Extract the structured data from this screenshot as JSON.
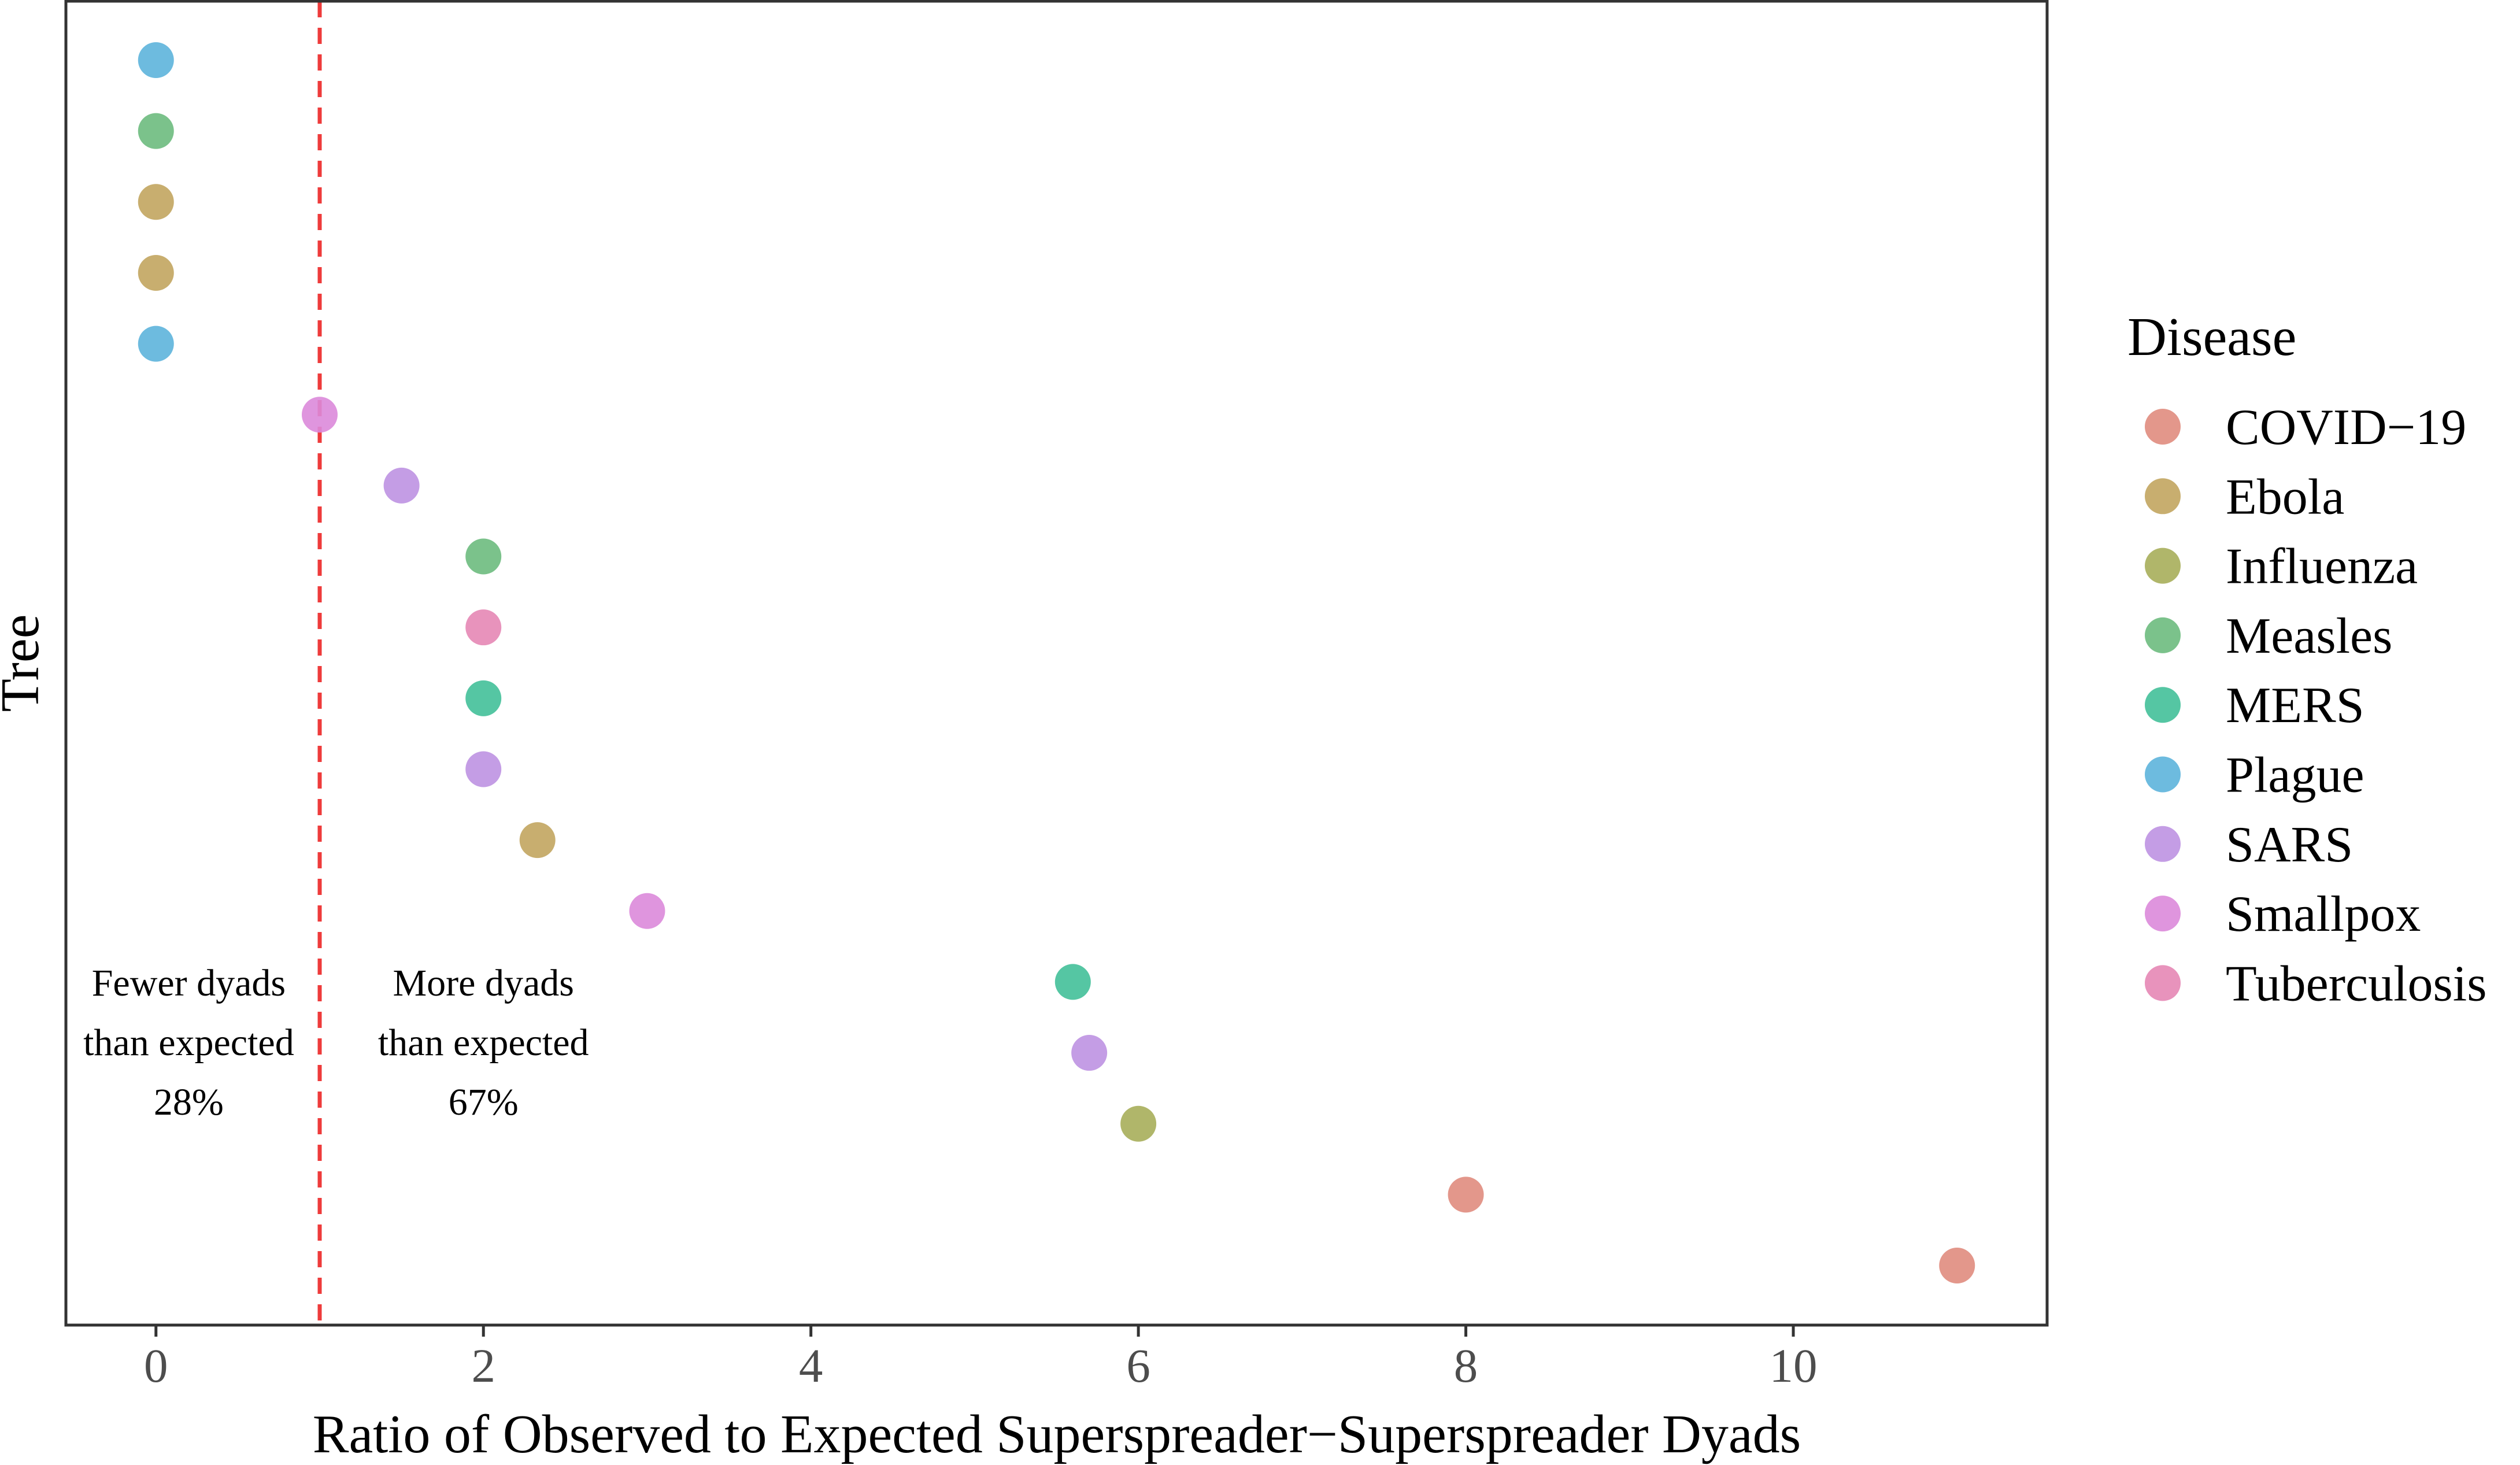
{
  "chart_data": {
    "type": "scatter",
    "title": "",
    "xlabel": "Ratio of Observed to Expected Superspreader−Superspreader Dyads",
    "ylabel": "Tree",
    "xlim": [
      -0.55,
      11.55
    ],
    "x_ticks": [
      0,
      2,
      4,
      6,
      8,
      10
    ],
    "x_tick_labels": [
      "0",
      "2",
      "4",
      "6",
      "8",
      "10"
    ],
    "grid": false,
    "reference_line": {
      "x": 1,
      "style": "dashed",
      "color": "#EE3B3B"
    },
    "annotations": [
      {
        "x": 0.2,
        "lines": [
          "Fewer dyads",
          "than expected",
          "28%"
        ]
      },
      {
        "x": 2.0,
        "lines": [
          "More dyads",
          "than expected",
          "67%"
        ]
      }
    ],
    "legend": {
      "title": "Disease",
      "position": "right"
    },
    "series": [
      {
        "name": "COVID−19",
        "color": "#E08C7E"
      },
      {
        "name": "Ebola",
        "color": "#C2A55F"
      },
      {
        "name": "Influenza",
        "color": "#A7AE5A"
      },
      {
        "name": "Measles",
        "color": "#6DBB7E"
      },
      {
        "name": "MERS",
        "color": "#43C099"
      },
      {
        "name": "Plague",
        "color": "#5DB4DC"
      },
      {
        "name": "SARS",
        "color": "#BE92E2"
      },
      {
        "name": "Smallpox",
        "color": "#DC8ADA"
      },
      {
        "name": "Tuberculosis",
        "color": "#E687B5"
      }
    ],
    "points": [
      {
        "tree": 18,
        "x": 0,
        "disease": "Plague"
      },
      {
        "tree": 17,
        "x": 0,
        "disease": "Measles"
      },
      {
        "tree": 16,
        "x": 0,
        "disease": "Ebola"
      },
      {
        "tree": 15,
        "x": 0,
        "disease": "Ebola"
      },
      {
        "tree": 14,
        "x": 0,
        "disease": "Plague"
      },
      {
        "tree": 13,
        "x": 1.0,
        "disease": "Smallpox"
      },
      {
        "tree": 12,
        "x": 1.5,
        "disease": "SARS"
      },
      {
        "tree": 11,
        "x": 2.0,
        "disease": "Measles"
      },
      {
        "tree": 10,
        "x": 2.0,
        "disease": "Tuberculosis"
      },
      {
        "tree": 9,
        "x": 2.0,
        "disease": "MERS"
      },
      {
        "tree": 8,
        "x": 2.0,
        "disease": "SARS"
      },
      {
        "tree": 7,
        "x": 2.33,
        "disease": "Ebola"
      },
      {
        "tree": 6,
        "x": 3.0,
        "disease": "Smallpox"
      },
      {
        "tree": 5,
        "x": 5.6,
        "disease": "MERS"
      },
      {
        "tree": 4,
        "x": 5.7,
        "disease": "SARS"
      },
      {
        "tree": 3,
        "x": 6.0,
        "disease": "Influenza"
      },
      {
        "tree": 2,
        "x": 8.0,
        "disease": "COVID−19"
      },
      {
        "tree": 1,
        "x": 11.0,
        "disease": "COVID−19"
      }
    ]
  }
}
